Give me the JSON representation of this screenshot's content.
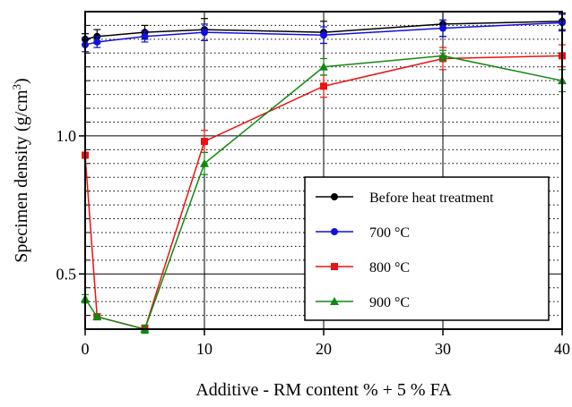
{
  "chart_data": {
    "type": "line",
    "xlabel": "Additive - RM content % + 5 % FA",
    "ylabel": "Specimen density (g/cm",
    "ylabel_superscript": "3",
    "ylabel_close": ")",
    "xlim": [
      0,
      40
    ],
    "ylim": [
      0.3,
      1.45
    ],
    "x_ticks": [
      0,
      10,
      20,
      30,
      40
    ],
    "x_tick_labels": [
      "0",
      "10",
      "20",
      "30",
      "40"
    ],
    "y_ticks": [
      0.5,
      1.0
    ],
    "y_tick_labels": [
      "0.5",
      "1.0"
    ],
    "y_scale": "linear",
    "grid": "major solid, minor dotted",
    "legend_position": "bottom-right",
    "series": [
      {
        "name": "Before heat treatment",
        "color": "#000000",
        "marker": "circle",
        "x": [
          0,
          1,
          5,
          10,
          20,
          30,
          40
        ],
        "y": [
          1.35,
          1.36,
          1.375,
          1.385,
          1.375,
          1.405,
          1.415
        ],
        "err": [
          0.02,
          0.025,
          0.025,
          0.04,
          0.04,
          0.045,
          0.03
        ]
      },
      {
        "name": "700 °C",
        "color": "#1010e0",
        "marker": "circle",
        "x": [
          0,
          1,
          5,
          10,
          20,
          30,
          40
        ],
        "y": [
          1.33,
          1.34,
          1.36,
          1.375,
          1.365,
          1.39,
          1.41
        ],
        "err": [
          0.025,
          0.02,
          0.02,
          0.03,
          0.03,
          0.03,
          0.03
        ]
      },
      {
        "name": "800 °C",
        "color": "#ee1111",
        "marker": "square",
        "x": [
          0,
          1,
          5,
          10,
          20,
          30,
          40
        ],
        "y": [
          0.93,
          0.345,
          0.3,
          0.98,
          1.18,
          1.28,
          1.29
        ],
        "err": [
          0.01,
          0.01,
          0.01,
          0.04,
          0.04,
          0.04,
          0.04
        ]
      },
      {
        "name": "900 °C",
        "color": "#118811",
        "marker": "triangle",
        "x": [
          0,
          1,
          5,
          10,
          20,
          30,
          40
        ],
        "y": [
          0.41,
          0.345,
          0.3,
          0.9,
          1.25,
          1.29,
          1.2
        ],
        "err": [
          0.015,
          0.01,
          0.015,
          0.04,
          0.03,
          0.02,
          0.04
        ]
      }
    ]
  }
}
